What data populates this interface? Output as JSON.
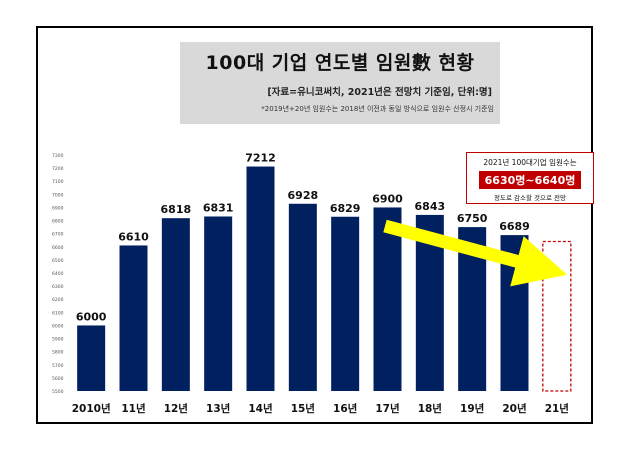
{
  "header": {
    "title": "100대 기업 연도별 임원數 현황",
    "subtitle": "[자료=유니코써치, 2021년은 전망치 기준임, 단위:명]",
    "note": "*2019년+20년 임원수는 2018년 이전과 동일 방식으로 임원수 산정시 기준임"
  },
  "callout": {
    "line1": "2021년 100대기업 임원수는",
    "line2": "6630명~6640명",
    "line3": "정도로 감소할 것으로 전망"
  },
  "colors": {
    "bar": "#002060",
    "arrow": "#ffff00",
    "forecast_border": "#c00000"
  },
  "chart_data": {
    "type": "bar",
    "title": "100대 기업 연도별 임원數 현황",
    "categories": [
      "2010년",
      "11년",
      "12년",
      "13년",
      "14년",
      "15년",
      "16년",
      "17년",
      "18년",
      "19년",
      "20년",
      "21년"
    ],
    "values": [
      6000,
      6610,
      6818,
      6831,
      7212,
      6928,
      6829,
      6900,
      6843,
      6750,
      6689,
      null
    ],
    "forecast": {
      "category": "21년",
      "low": 6630,
      "high": 6640
    },
    "ylim": [
      5500,
      7300
    ],
    "yticks": [
      5500,
      5600,
      5700,
      5800,
      5900,
      6000,
      6100,
      6200,
      6300,
      6400,
      6500,
      6600,
      6700,
      6800,
      6900,
      7000,
      7100,
      7200,
      7300
    ],
    "xlabel": "",
    "ylabel": "",
    "grid": false,
    "legend": "none"
  }
}
